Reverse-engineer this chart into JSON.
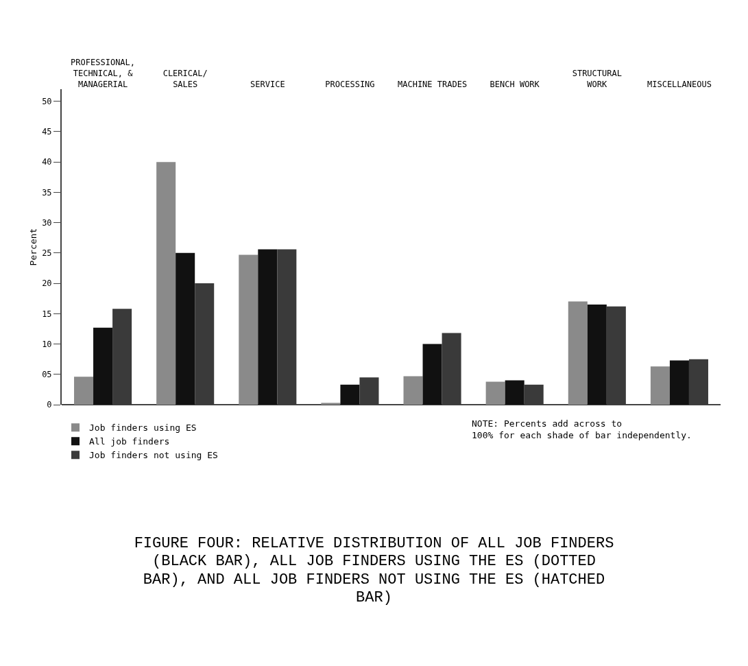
{
  "chart_data": {
    "type": "bar",
    "title": "FIGURE FOUR:  RELATIVE DISTRIBUTION OF ALL JOB FINDERS (BLACK BAR), ALL JOB FINDERS USING THE ES (DOTTED BAR), AND ALL JOB FINDERS NOT USING THE ES (HATCHED BAR)",
    "ylabel": "Percent",
    "categories": [
      "PROFESSIONAL, TECHNICAL, & MANAGERIAL",
      "CLERICAL/ SALES",
      "SERVICE",
      "PROCESSING",
      "MACHINE TRADES",
      "BENCH WORK",
      "STRUCTURAL WORK",
      "MISCELLANEOUS"
    ],
    "series": [
      {
        "name": "Job finders using ES",
        "color": "#8a8a8a",
        "values": [
          4.6,
          40,
          24.7,
          0.3,
          4.7,
          3.8,
          17,
          6.3
        ]
      },
      {
        "name": "All job finders",
        "color": "#111111",
        "values": [
          12.7,
          25,
          25.6,
          3.3,
          10,
          4,
          16.5,
          7.3
        ]
      },
      {
        "name": "Job finders not using ES",
        "color": "#3a3a3a",
        "values": [
          15.8,
          20,
          25.6,
          4.5,
          11.8,
          3.3,
          16.2,
          7.5
        ]
      }
    ],
    "ylim": [
      0,
      52
    ],
    "yticks": [
      0,
      {
        "value": 5,
        "label": "05"
      },
      10,
      15,
      20,
      25,
      30,
      35,
      40,
      45,
      50
    ],
    "grid": false,
    "legend": "bottom left",
    "annotations": [
      "NOTE:  Percents add across to 100% for each shade of bar independently."
    ]
  }
}
